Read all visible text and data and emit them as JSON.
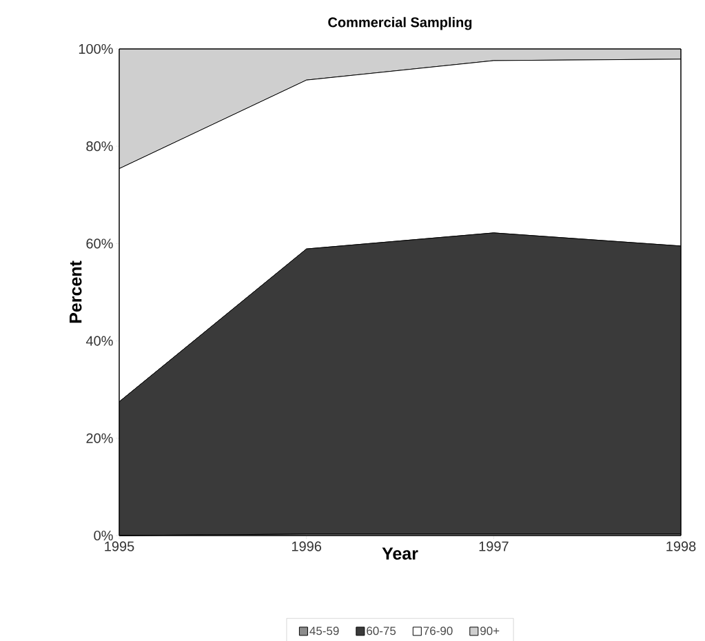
{
  "chart_data": {
    "type": "area",
    "title": "Commercial Sampling",
    "xlabel": "Year",
    "ylabel": "Percent",
    "x": [
      1995,
      1996,
      1997,
      1998
    ],
    "stacked": true,
    "legend": "bottom",
    "xlim": [
      1995,
      1998
    ],
    "xticks": [
      1995,
      1996,
      1997,
      1998
    ],
    "ylim": [
      0,
      100
    ],
    "yticks": [
      {
        "value": 0,
        "label": "0%"
      },
      {
        "value": 20,
        "label": "20%"
      },
      {
        "value": 40,
        "label": "40%"
      },
      {
        "value": 60,
        "label": "60%"
      },
      {
        "value": 80,
        "label": "80%"
      },
      {
        "value": 100,
        "label": "100%"
      }
    ],
    "series": [
      {
        "name": "45-59",
        "color": "#8c8c8c",
        "values": [
          0,
          0.3,
          0.3,
          0.3
        ]
      },
      {
        "name": "60-75",
        "color": "#3a3a3a",
        "values": [
          27.5,
          58.6,
          61.9,
          59.2
        ]
      },
      {
        "name": "76-90",
        "color": "#ffffff",
        "values": [
          47.9,
          34.7,
          35.4,
          38.4
        ]
      },
      {
        "name": "90+",
        "color": "#cfcfcf",
        "values": [
          24.6,
          6.4,
          2.4,
          2.1
        ]
      }
    ]
  }
}
